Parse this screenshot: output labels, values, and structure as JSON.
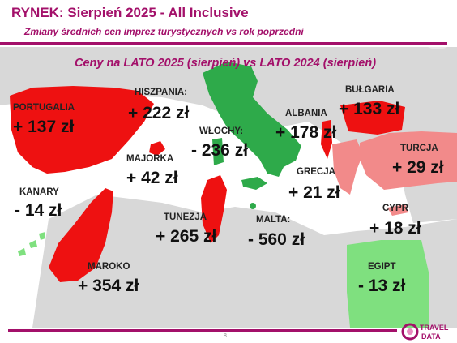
{
  "header": {
    "title": "RYNEK: Sierpień 2025 - All Inclusive",
    "subtitle": "Zmiany średnich cen imprez turystycznych vs rok poprzedni"
  },
  "map_heading": "Ceny na LATO 2025 (sierpień) vs  LATO 2024 (sierpień)",
  "colors": {
    "brand": "#a3106a",
    "increase_strong": "#ee1111",
    "increase_mild": "#f28a8a",
    "decrease": "#2eaa4a",
    "decrease_mild": "#7fe07f",
    "land": "#d8d8d8",
    "sea": "#ffffff"
  },
  "destinations": [
    {
      "name": "PORTUGALIA",
      "change": "+ 137 zł"
    },
    {
      "name": "HISZPANIA:",
      "change": "+ 222 zł"
    },
    {
      "name": "WŁOCHY:",
      "change": "- 236 zł"
    },
    {
      "name": "ALBANIA",
      "change": "+ 178 zł"
    },
    {
      "name": "BUŁGARIA",
      "change": "+ 133 zł"
    },
    {
      "name": "MAJORKA",
      "change": "+ 42 zł"
    },
    {
      "name": "TURCJA",
      "change": "+ 29 zł"
    },
    {
      "name": "KANARY",
      "change": "- 14 zł"
    },
    {
      "name": "GRECJA",
      "change": "+ 21 zł"
    },
    {
      "name": "TUNEZJA",
      "change": "+ 265 zł"
    },
    {
      "name": "MALTA:",
      "change": "- 560 zł"
    },
    {
      "name": "CYPR",
      "change": "+ 18 zł"
    },
    {
      "name": "MAROKO",
      "change": "+ 354 zł"
    },
    {
      "name": "EGIPT",
      "change": "- 13 zł"
    }
  ],
  "page_number": "8",
  "logo": {
    "line1": "TRAVEL",
    "line2": "DATA"
  }
}
